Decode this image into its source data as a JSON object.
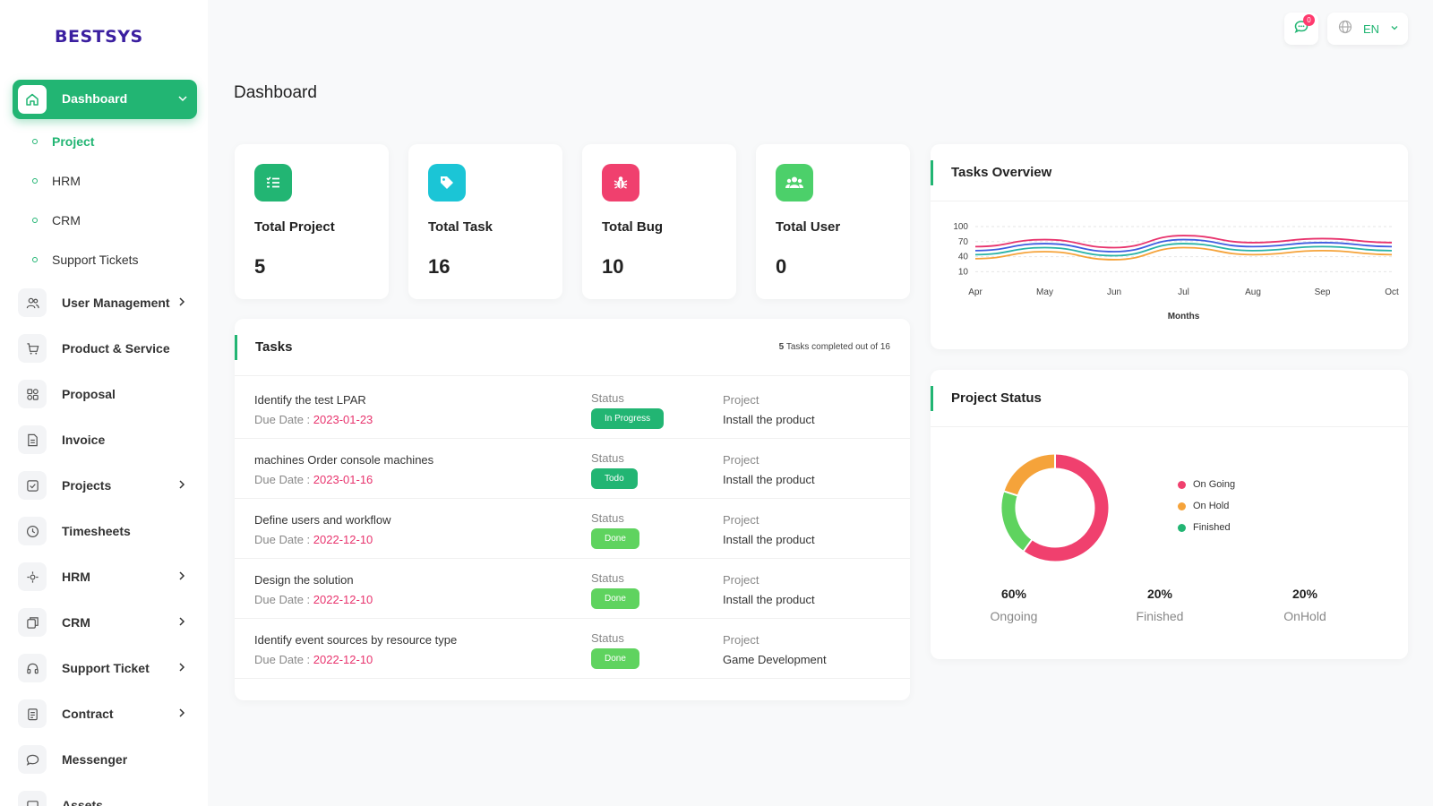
{
  "brand": {
    "logo_text": "BESTSYS",
    "brand_color": "#3b1fa0",
    "accent": "#22b573"
  },
  "topbar": {
    "notification_count": "0",
    "notification_icon": "chat-icon",
    "language_icon": "globe-icon",
    "language": "EN"
  },
  "sidebar": {
    "active_item": {
      "label": "Dashboard",
      "icon": "home-icon"
    },
    "sub_items": [
      {
        "label": "Project",
        "active": true
      },
      {
        "label": "HRM"
      },
      {
        "label": "CRM"
      },
      {
        "label": "Support Tickets"
      }
    ],
    "items": [
      {
        "label": "User Management",
        "icon": "users-icon",
        "has_children": true
      },
      {
        "label": "Product & Service",
        "icon": "cart-icon",
        "has_children": false
      },
      {
        "label": "Proposal",
        "icon": "proposal-icon",
        "has_children": false
      },
      {
        "label": "Invoice",
        "icon": "invoice-icon",
        "has_children": false
      },
      {
        "label": "Projects",
        "icon": "check-square-icon",
        "has_children": true
      },
      {
        "label": "Timesheets",
        "icon": "clock-icon",
        "has_children": false
      },
      {
        "label": "HRM",
        "icon": "hrm-icon",
        "has_children": true
      },
      {
        "label": "CRM",
        "icon": "crm-icon",
        "has_children": true
      },
      {
        "label": "Support Ticket",
        "icon": "headset-icon",
        "has_children": true
      },
      {
        "label": "Contract",
        "icon": "contract-icon",
        "has_children": true
      },
      {
        "label": "Messenger",
        "icon": "message-icon",
        "has_children": false
      },
      {
        "label": "Assets",
        "icon": "assets-icon",
        "has_children": false
      }
    ]
  },
  "page": {
    "title": "Dashboard"
  },
  "stats": [
    {
      "label": "Total Project",
      "value": "5",
      "icon": "list-icon",
      "color": "#22b573"
    },
    {
      "label": "Total Task",
      "value": "16",
      "icon": "tag-icon",
      "color": "#1bc5d6"
    },
    {
      "label": "Total Bug",
      "value": "10",
      "icon": "bug-icon",
      "color": "#f0406e"
    },
    {
      "label": "Total User",
      "value": "0",
      "icon": "users-icon",
      "color": "#4cd06a"
    }
  ],
  "tasks": {
    "title": "Tasks",
    "summary_count": "5",
    "summary_text": "Tasks completed out of 16",
    "status_label": "Status",
    "project_label": "Project",
    "due_label": "Due Date :",
    "rows": [
      {
        "name": "Identify the test LPAR",
        "due": "2023-01-23",
        "status": "In Progress",
        "project": "Install the product"
      },
      {
        "name": "machines Order console machines",
        "due": "2023-01-16",
        "status": "Todo",
        "project": "Install the product"
      },
      {
        "name": "Define users and workflow",
        "due": "2022-12-10",
        "status": "Done",
        "project": "Install the product"
      },
      {
        "name": "Design the solution",
        "due": "2022-12-10",
        "status": "Done",
        "project": "Install the product"
      },
      {
        "name": "Identify event sources by resource type",
        "due": "2022-12-10",
        "status": "Done",
        "project": "Game Development"
      }
    ]
  },
  "tasks_overview": {
    "title": "Tasks Overview",
    "chart_data": {
      "type": "line",
      "xlabel": "Months",
      "ylabel": "",
      "categories": [
        "Apr",
        "May",
        "Jun",
        "Jul",
        "Aug",
        "Sep",
        "Oct"
      ],
      "y_ticks": [
        "100",
        "70",
        "40",
        "10"
      ],
      "ylim": [
        0,
        100
      ],
      "grid": true,
      "series": [
        {
          "color": "#e8336d",
          "values": [
            60,
            74,
            58,
            82,
            68,
            76,
            68
          ]
        },
        {
          "color": "#3f5de0",
          "values": [
            52,
            66,
            50,
            74,
            60,
            68,
            60
          ]
        },
        {
          "color": "#2ab3a6",
          "values": [
            44,
            58,
            42,
            66,
            52,
            60,
            52
          ]
        },
        {
          "color": "#f5a33a",
          "values": [
            36,
            50,
            34,
            58,
            44,
            52,
            44
          ]
        }
      ]
    }
  },
  "project_status": {
    "title": "Project Status",
    "legend": [
      {
        "label": "On Going",
        "color": "#f0406e"
      },
      {
        "label": "On Hold",
        "color": "#f5a33a"
      },
      {
        "label": "Finished",
        "color": "#22b573"
      }
    ],
    "chart_data": {
      "type": "pie",
      "donut": true,
      "slices": [
        {
          "label": "On Going",
          "value": 60,
          "color": "#f0406e"
        },
        {
          "label": "Finished",
          "value": 20,
          "color": "#5fd35f"
        },
        {
          "label": "On Hold",
          "value": 20,
          "color": "#f5a33a"
        }
      ]
    },
    "stats": [
      {
        "pct": "60%",
        "label": "Ongoing"
      },
      {
        "pct": "20%",
        "label": "Finished"
      },
      {
        "pct": "20%",
        "label": "OnHold"
      }
    ]
  }
}
